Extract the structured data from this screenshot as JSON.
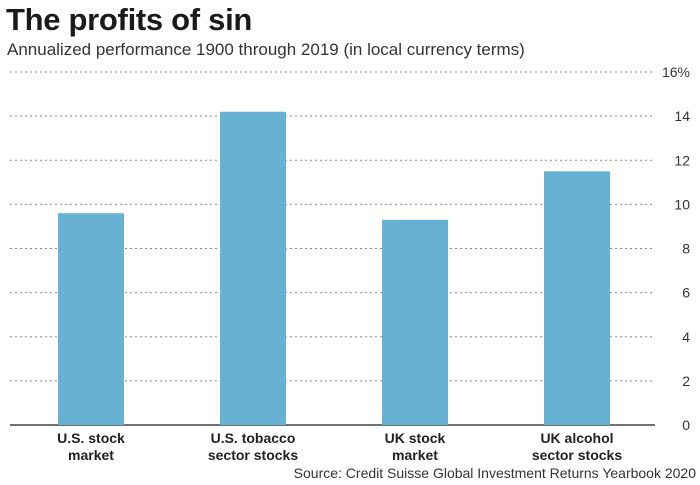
{
  "header": {
    "title": "The profits of sin",
    "subtitle": "Annualized performance 1900 through 2019 (in local currency terms)"
  },
  "footer": {
    "source": "Source: Credit Suisse Global Investment Returns Yearbook 2020"
  },
  "colors": {
    "bar": "#67b2d3",
    "grid": "#8a8a8a",
    "axis": "#444444"
  },
  "chart_data": {
    "type": "bar",
    "title": "The profits of sin",
    "subtitle": "Annualized performance 1900 through 2019 (in local currency terms)",
    "categories": [
      [
        "U.S. stock",
        "market"
      ],
      [
        "U.S. tobacco",
        "sector stocks"
      ],
      [
        "UK stock",
        "market"
      ],
      [
        "UK alcohol",
        "sector stocks"
      ]
    ],
    "values": [
      9.6,
      14.2,
      9.3,
      11.5
    ],
    "ylim": [
      0,
      16
    ],
    "yticks": [
      0,
      2,
      4,
      6,
      8,
      10,
      12,
      14,
      16
    ],
    "ytick_labels": [
      "0",
      "2",
      "4",
      "6",
      "8",
      "10",
      "12",
      "14",
      "16%"
    ],
    "xlabel": "",
    "ylabel": "",
    "grid": true,
    "legend": "none"
  }
}
